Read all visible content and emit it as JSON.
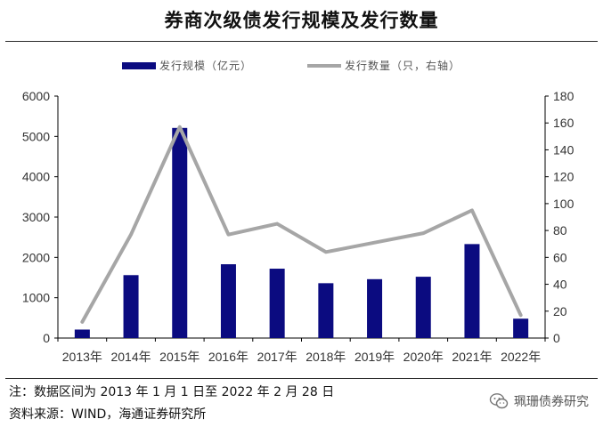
{
  "title": "券商次级债发行规模及发行数量",
  "footnotes": {
    "note": "注：数据区间为 2013 年 1 月 1 日至 2022 年 2 月 28 日",
    "source": "资料来源：WIND，海通证券研究所"
  },
  "watermark": {
    "icon": "wechat-icon",
    "text": "珮珊债券研究"
  },
  "colors": {
    "bar": "#0b0b80",
    "line": "#a6a6a6",
    "axis": "#000000",
    "text": "#333333"
  },
  "chart_data": {
    "type": "bar",
    "title": "券商次级债发行规模及发行数量",
    "categories": [
      "2013年",
      "2014年",
      "2015年",
      "2016年",
      "2017年",
      "2018年",
      "2019年",
      "2020年",
      "2021年",
      "2022年"
    ],
    "series": [
      {
        "name": "发行规模（亿元）",
        "type": "bar",
        "axis": "left",
        "values": [
          210,
          1560,
          5210,
          1830,
          1720,
          1360,
          1460,
          1520,
          2330,
          480
        ]
      },
      {
        "name": "发行数量（只，右轴）",
        "type": "line",
        "axis": "right",
        "values": [
          12,
          77,
          157,
          77,
          85,
          64,
          71,
          78,
          95,
          17
        ]
      }
    ],
    "y_left": {
      "lim": [
        0,
        6000
      ],
      "ticks": [
        "0",
        "1000",
        "2000",
        "3000",
        "4000",
        "5000",
        "6000"
      ]
    },
    "y_right": {
      "lim": [
        0,
        180
      ],
      "ticks": [
        "0",
        "20",
        "40",
        "60",
        "80",
        "100",
        "120",
        "140",
        "160",
        "180"
      ]
    },
    "grid": false,
    "legend_position": "top-center"
  }
}
